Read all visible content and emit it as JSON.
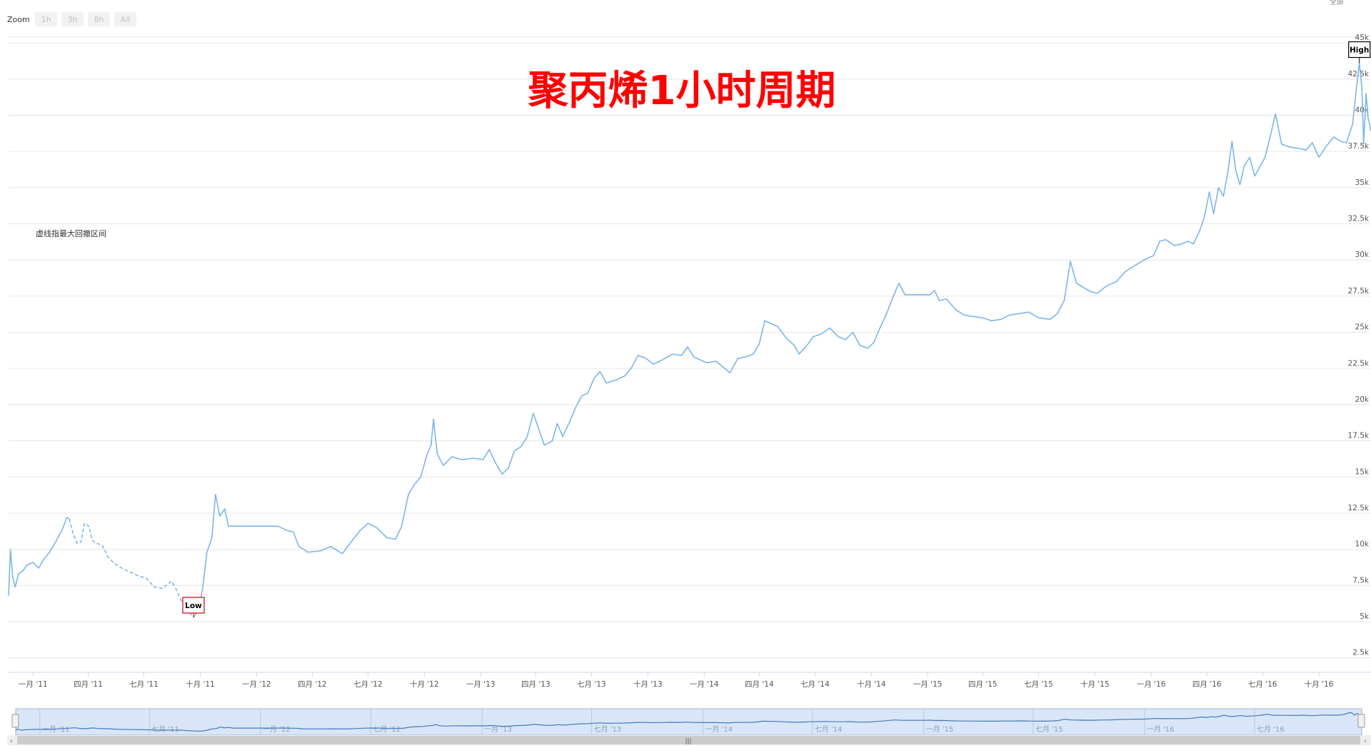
{
  "zoom": {
    "label": "Zoom",
    "buttons": [
      "1h",
      "3h",
      "8h",
      "All"
    ]
  },
  "topright_text": "全屏",
  "title": "聚丙烯1小时周期",
  "annotation": "虚线指最大回撤区间",
  "flags": {
    "high": "High",
    "low": "Low"
  },
  "colors": {
    "line": "#7cb5ec",
    "title": "#ff0000",
    "flag_low_border": "#cc0000",
    "navigator_fill": "#d8e6f8"
  },
  "chart_data": {
    "type": "line",
    "title": "聚丙烯1小时周期",
    "xlabel": "",
    "ylabel": "",
    "x_range": [
      "2010-11-22",
      "2016-12-25"
    ],
    "ylim": [
      1500,
      45500
    ],
    "y_ticks": [
      "2.5k",
      "5k",
      "7.5k",
      "10k",
      "12.5k",
      "15k",
      "17.5k",
      "20k",
      "22.5k",
      "25k",
      "27.5k",
      "30k",
      "32.5k",
      "35k",
      "37.5k",
      "40k",
      "42.5k",
      "45k"
    ],
    "x_tick_labels": [
      {
        "date": "2011-01-01",
        "label": "一月 '11"
      },
      {
        "date": "2011-04-01",
        "label": "四月 '11"
      },
      {
        "date": "2011-07-01",
        "label": "七月 '11"
      },
      {
        "date": "2011-10-01",
        "label": "十月 '11"
      },
      {
        "date": "2012-01-01",
        "label": "一月 '12"
      },
      {
        "date": "2012-04-01",
        "label": "四月 '12"
      },
      {
        "date": "2012-07-01",
        "label": "七月 '12"
      },
      {
        "date": "2012-10-01",
        "label": "十月 '12"
      },
      {
        "date": "2013-01-01",
        "label": "一月 '13"
      },
      {
        "date": "2013-04-01",
        "label": "四月 '13"
      },
      {
        "date": "2013-07-01",
        "label": "七月 '13"
      },
      {
        "date": "2013-10-01",
        "label": "十月 '13"
      },
      {
        "date": "2014-01-01",
        "label": "一月 '14"
      },
      {
        "date": "2014-04-01",
        "label": "四月 '14"
      },
      {
        "date": "2014-07-01",
        "label": "七月 '14"
      },
      {
        "date": "2014-10-01",
        "label": "十月 '14"
      },
      {
        "date": "2015-01-01",
        "label": "一月 '15"
      },
      {
        "date": "2015-04-01",
        "label": "四月 '15"
      },
      {
        "date": "2015-07-01",
        "label": "七月 '15"
      },
      {
        "date": "2015-10-01",
        "label": "十月 '15"
      },
      {
        "date": "2016-01-01",
        "label": "一月 '16"
      },
      {
        "date": "2016-04-01",
        "label": "四月 '16"
      },
      {
        "date": "2016-07-01",
        "label": "七月 '16"
      },
      {
        "date": "2016-10-01",
        "label": "十月 '16"
      }
    ],
    "navigator_tick_labels": [
      {
        "date": "2011-01-01",
        "label": "一月 '11"
      },
      {
        "date": "2011-07-01",
        "label": "七月 '11"
      },
      {
        "date": "2012-01-01",
        "label": "一月 '12"
      },
      {
        "date": "2012-07-01",
        "label": "七月 '12"
      },
      {
        "date": "2013-01-01",
        "label": "一月 '13"
      },
      {
        "date": "2013-07-01",
        "label": "七月 '13"
      },
      {
        "date": "2014-01-01",
        "label": "一月 '14"
      },
      {
        "date": "2014-07-01",
        "label": "七月 '14"
      },
      {
        "date": "2015-01-01",
        "label": "一月 '15"
      },
      {
        "date": "2015-07-01",
        "label": "七月 '15"
      },
      {
        "date": "2016-01-01",
        "label": "一月 '16"
      },
      {
        "date": "2016-07-01",
        "label": "七月 '16"
      }
    ],
    "series": [
      {
        "style": "solid",
        "points": [
          [
            "2010-11-22",
            6800
          ],
          [
            "2010-11-25",
            10000
          ],
          [
            "2010-11-29",
            8000
          ],
          [
            "2010-12-03",
            7400
          ],
          [
            "2010-12-08",
            8300
          ],
          [
            "2010-12-15",
            8500
          ],
          [
            "2010-12-22",
            8900
          ],
          [
            "2011-01-01",
            9100
          ],
          [
            "2011-01-10",
            8700
          ],
          [
            "2011-01-18",
            9300
          ],
          [
            "2011-01-28",
            9800
          ],
          [
            "2011-02-08",
            10600
          ],
          [
            "2011-02-18",
            11400
          ],
          [
            "2011-02-25",
            12200
          ],
          [
            "2011-03-01",
            12100
          ]
        ]
      },
      {
        "style": "dashed",
        "points": [
          [
            "2011-03-01",
            12100
          ],
          [
            "2011-03-08",
            11000
          ],
          [
            "2011-03-14",
            10400
          ],
          [
            "2011-03-20",
            10500
          ],
          [
            "2011-03-26",
            11800
          ],
          [
            "2011-04-02",
            11600
          ],
          [
            "2011-04-08",
            10600
          ],
          [
            "2011-04-16",
            10400
          ],
          [
            "2011-04-24",
            10300
          ],
          [
            "2011-05-03",
            9500
          ],
          [
            "2011-05-12",
            9100
          ],
          [
            "2011-05-22",
            8800
          ],
          [
            "2011-06-05",
            8500
          ],
          [
            "2011-06-20",
            8200
          ],
          [
            "2011-07-05",
            8000
          ],
          [
            "2011-07-18",
            7400
          ],
          [
            "2011-08-01",
            7300
          ],
          [
            "2011-08-15",
            7800
          ],
          [
            "2011-08-22",
            7300
          ],
          [
            "2011-09-05",
            6000
          ],
          [
            "2011-09-14",
            5600
          ],
          [
            "2011-09-20",
            5300
          ]
        ]
      },
      {
        "style": "solid",
        "points": [
          [
            "2011-09-20",
            5300
          ],
          [
            "2011-09-28",
            5800
          ],
          [
            "2011-10-05",
            7300
          ],
          [
            "2011-10-12",
            9800
          ],
          [
            "2011-10-20",
            10800
          ],
          [
            "2011-10-26",
            13800
          ],
          [
            "2011-11-02",
            12300
          ],
          [
            "2011-11-10",
            12800
          ],
          [
            "2011-11-16",
            11600
          ],
          [
            "2011-12-10",
            11600
          ],
          [
            "2012-01-05",
            11600
          ],
          [
            "2012-02-05",
            11600
          ],
          [
            "2012-02-20",
            11300
          ],
          [
            "2012-03-01",
            11200
          ],
          [
            "2012-03-10",
            10200
          ],
          [
            "2012-03-25",
            9800
          ],
          [
            "2012-04-15",
            9900
          ],
          [
            "2012-05-01",
            10200
          ],
          [
            "2012-05-20",
            9700
          ],
          [
            "2012-06-05",
            10600
          ],
          [
            "2012-06-18",
            11300
          ],
          [
            "2012-07-01",
            11800
          ],
          [
            "2012-07-15",
            11500
          ],
          [
            "2012-08-01",
            10800
          ],
          [
            "2012-08-15",
            10700
          ],
          [
            "2012-08-25",
            11600
          ],
          [
            "2012-09-05",
            13800
          ],
          [
            "2012-09-15",
            14500
          ],
          [
            "2012-09-25",
            15000
          ],
          [
            "2012-10-05",
            16500
          ],
          [
            "2012-10-12",
            17200
          ],
          [
            "2012-10-16",
            19000
          ],
          [
            "2012-10-22",
            16600
          ],
          [
            "2012-11-01",
            15800
          ],
          [
            "2012-11-15",
            16400
          ],
          [
            "2012-12-01",
            16200
          ],
          [
            "2012-12-20",
            16300
          ],
          [
            "2013-01-05",
            16200
          ],
          [
            "2013-01-15",
            16900
          ],
          [
            "2013-01-25",
            16000
          ],
          [
            "2013-02-05",
            15200
          ],
          [
            "2013-02-15",
            15600
          ],
          [
            "2013-02-25",
            16800
          ],
          [
            "2013-03-08",
            17100
          ],
          [
            "2013-03-18",
            17800
          ],
          [
            "2013-03-28",
            19400
          ],
          [
            "2013-04-06",
            18300
          ],
          [
            "2013-04-15",
            17200
          ],
          [
            "2013-04-28",
            17500
          ],
          [
            "2013-05-06",
            18700
          ],
          [
            "2013-05-15",
            17800
          ],
          [
            "2013-05-25",
            18700
          ],
          [
            "2013-06-05",
            19800
          ],
          [
            "2013-06-15",
            20600
          ],
          [
            "2013-06-25",
            20800
          ],
          [
            "2013-07-05",
            21800
          ],
          [
            "2013-07-15",
            22300
          ],
          [
            "2013-07-25",
            21500
          ],
          [
            "2013-08-10",
            21700
          ],
          [
            "2013-08-25",
            22000
          ],
          [
            "2013-09-05",
            22600
          ],
          [
            "2013-09-15",
            23400
          ],
          [
            "2013-09-28",
            23200
          ],
          [
            "2013-10-10",
            22800
          ],
          [
            "2013-10-25",
            23100
          ],
          [
            "2013-11-10",
            23500
          ],
          [
            "2013-11-25",
            23400
          ],
          [
            "2013-12-05",
            24000
          ],
          [
            "2013-12-15",
            23300
          ],
          [
            "2014-01-05",
            22900
          ],
          [
            "2014-01-20",
            23000
          ],
          [
            "2014-02-01",
            22600
          ],
          [
            "2014-02-12",
            22200
          ],
          [
            "2014-02-25",
            23200
          ],
          [
            "2014-03-10",
            23300
          ],
          [
            "2014-03-22",
            23500
          ],
          [
            "2014-04-01",
            24200
          ],
          [
            "2014-04-10",
            25800
          ],
          [
            "2014-04-20",
            25600
          ],
          [
            "2014-05-01",
            25400
          ],
          [
            "2014-05-15",
            24600
          ],
          [
            "2014-05-28",
            24100
          ],
          [
            "2014-06-05",
            23500
          ],
          [
            "2014-06-18",
            24100
          ],
          [
            "2014-06-28",
            24700
          ],
          [
            "2014-07-12",
            24900
          ],
          [
            "2014-07-25",
            25300
          ],
          [
            "2014-08-08",
            24700
          ],
          [
            "2014-08-20",
            24500
          ],
          [
            "2014-09-01",
            25000
          ],
          [
            "2014-09-12",
            24100
          ],
          [
            "2014-09-25",
            23900
          ],
          [
            "2014-10-05",
            24300
          ],
          [
            "2014-10-15",
            25300
          ],
          [
            "2014-10-25",
            26200
          ],
          [
            "2014-11-05",
            27400
          ],
          [
            "2014-11-15",
            28400
          ],
          [
            "2014-11-25",
            27600
          ],
          [
            "2014-12-10",
            27600
          ],
          [
            "2014-12-25",
            27600
          ],
          [
            "2015-01-05",
            27600
          ],
          [
            "2015-01-12",
            27900
          ],
          [
            "2015-01-20",
            27200
          ],
          [
            "2015-02-01",
            27300
          ],
          [
            "2015-02-15",
            26600
          ],
          [
            "2015-03-01",
            26200
          ],
          [
            "2015-03-15",
            26100
          ],
          [
            "2015-04-01",
            26000
          ],
          [
            "2015-04-15",
            25800
          ],
          [
            "2015-05-01",
            25900
          ],
          [
            "2015-05-15",
            26200
          ],
          [
            "2015-06-01",
            26300
          ],
          [
            "2015-06-15",
            26400
          ],
          [
            "2015-07-01",
            26000
          ],
          [
            "2015-07-20",
            25900
          ],
          [
            "2015-08-01",
            26300
          ],
          [
            "2015-08-12",
            27200
          ],
          [
            "2015-08-22",
            29900
          ],
          [
            "2015-09-01",
            28400
          ],
          [
            "2015-09-12",
            28100
          ],
          [
            "2015-09-25",
            27800
          ],
          [
            "2015-10-05",
            27700
          ],
          [
            "2015-10-20",
            28200
          ],
          [
            "2015-11-05",
            28500
          ],
          [
            "2015-11-20",
            29200
          ],
          [
            "2015-12-05",
            29600
          ],
          [
            "2015-12-20",
            30000
          ],
          [
            "2016-01-05",
            30300
          ],
          [
            "2016-01-15",
            31300
          ],
          [
            "2016-01-25",
            31400
          ],
          [
            "2016-02-08",
            31000
          ],
          [
            "2016-02-20",
            31100
          ],
          [
            "2016-03-01",
            31300
          ],
          [
            "2016-03-10",
            31100
          ],
          [
            "2016-03-20",
            32000
          ],
          [
            "2016-03-28",
            33000
          ],
          [
            "2016-04-05",
            34700
          ],
          [
            "2016-04-12",
            33200
          ],
          [
            "2016-04-20",
            35000
          ],
          [
            "2016-04-28",
            34400
          ],
          [
            "2016-05-05",
            36000
          ],
          [
            "2016-05-12",
            38200
          ],
          [
            "2016-05-18",
            36200
          ],
          [
            "2016-05-25",
            35200
          ],
          [
            "2016-06-01",
            36500
          ],
          [
            "2016-06-10",
            37100
          ],
          [
            "2016-06-18",
            35800
          ],
          [
            "2016-06-26",
            36400
          ],
          [
            "2016-07-05",
            37100
          ],
          [
            "2016-07-15",
            38800
          ],
          [
            "2016-07-22",
            40100
          ],
          [
            "2016-08-01",
            38000
          ],
          [
            "2016-08-15",
            37800
          ],
          [
            "2016-08-30",
            37700
          ],
          [
            "2016-09-10",
            37600
          ],
          [
            "2016-09-20",
            38100
          ],
          [
            "2016-10-01",
            37100
          ],
          [
            "2016-10-12",
            37800
          ],
          [
            "2016-10-25",
            38500
          ],
          [
            "2016-11-05",
            38200
          ],
          [
            "2016-11-15",
            38100
          ],
          [
            "2016-11-25",
            39400
          ],
          [
            "2016-12-01",
            41800
          ],
          [
            "2016-12-06",
            43600
          ],
          [
            "2016-12-10",
            42000
          ],
          [
            "2016-12-13",
            38000
          ],
          [
            "2016-12-17",
            41500
          ],
          [
            "2016-12-20",
            39900
          ],
          [
            "2016-12-25",
            38900
          ]
        ]
      }
    ],
    "high": {
      "date": "2016-12-06",
      "value": 43600
    },
    "low": {
      "date": "2011-09-20",
      "value": 5300
    }
  }
}
